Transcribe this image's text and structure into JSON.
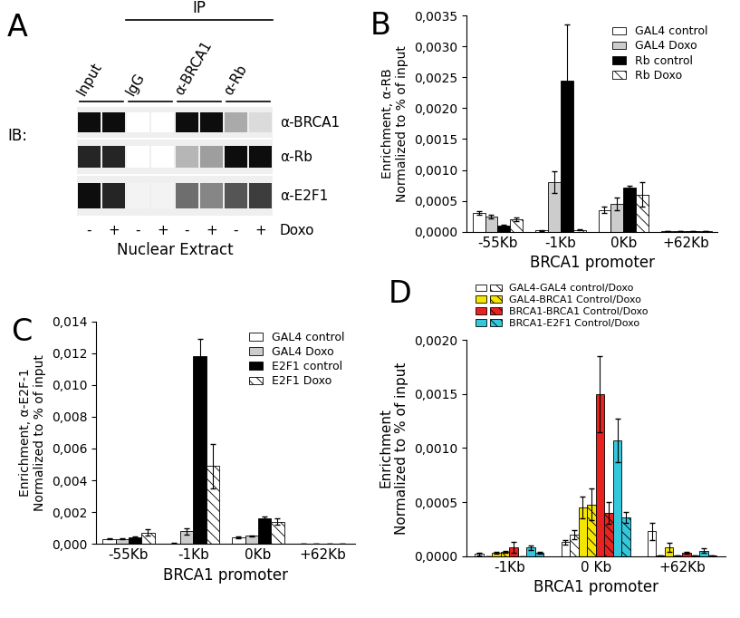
{
  "blot": {
    "title": "A",
    "ip_label": "IP",
    "groups": [
      "Input",
      "IgG",
      "α-BRCA1",
      "α-Rb"
    ],
    "lane_signs": [
      "-",
      "+",
      "-",
      "+",
      "-",
      "+",
      "-",
      "+"
    ],
    "treatment_label": "Doxo",
    "ib_label": "IB:",
    "sample_label": "Nuclear Extract",
    "rows": [
      {
        "name": "α-BRCA1",
        "intensity": [
          1.0,
          1.0,
          0.0,
          0.0,
          1.0,
          1.0,
          0.35,
          0.15
        ]
      },
      {
        "name": "α-Rb",
        "intensity": [
          0.9,
          0.9,
          0.0,
          0.0,
          0.3,
          0.4,
          1.0,
          1.0
        ]
      },
      {
        "name": "α-E2F1",
        "intensity": [
          1.0,
          0.9,
          0.05,
          0.05,
          0.6,
          0.5,
          0.7,
          0.8
        ]
      }
    ]
  },
  "chart_data": [
    {
      "type": "bar",
      "title": "B",
      "x_label": "BRCA1 promoter",
      "y_label": "Enrichment, α-RB\nNormalized to % of input",
      "categories": [
        "-55Kb",
        "-1Kb",
        "0Kb",
        "+62Kb"
      ],
      "ylim": [
        0,
        0.0035
      ],
      "yticks": [
        {
          "value": 0,
          "label": "0,0000"
        },
        {
          "value": 0.0005,
          "label": "0,0005"
        },
        {
          "value": 0.001,
          "label": "0,0010"
        },
        {
          "value": 0.0015,
          "label": "0,0015"
        },
        {
          "value": 0.002,
          "label": "0,0020"
        },
        {
          "value": 0.0025,
          "label": "0,0025"
        },
        {
          "value": 0.003,
          "label": "0,0030"
        },
        {
          "value": 0.0035,
          "label": "0,0035"
        }
      ],
      "legend": "upper right",
      "series": [
        {
          "name": "GAL4 control",
          "color": "#ffffff",
          "values": [
            0.0003,
            2e-05,
            0.00035,
            1e-05
          ],
          "errors": [
            3e-05,
            1e-05,
            5e-05,
            0.0
          ]
        },
        {
          "name": "GAL4 Doxo",
          "color": "#cccccc",
          "values": [
            0.00025,
            0.0008,
            0.00045,
            1e-05
          ],
          "errors": [
            3e-05,
            0.00018,
            0.0001,
            0.0
          ]
        },
        {
          "name": "Rb control",
          "color": "#000000",
          "values": [
            0.0001,
            0.00245,
            0.00072,
            1e-05
          ],
          "errors": [
            2e-05,
            0.0009,
            2e-05,
            0.0
          ]
        },
        {
          "name": "Rb Doxo",
          "color": "#ffffff",
          "line_style": "hatched",
          "values": [
            0.0002,
            3e-05,
            0.0006,
            1e-05
          ],
          "errors": [
            3e-05,
            1e-05,
            0.0002,
            0.0
          ]
        }
      ]
    },
    {
      "type": "bar",
      "title": "C",
      "x_label": "BRCA1 promoter",
      "y_label": "Enrichment, α-E2F-1\nNormalized to % of input",
      "categories": [
        "-55Kb",
        "-1Kb",
        "0Kb",
        "+62Kb"
      ],
      "ylim": [
        0,
        0.014
      ],
      "yticks": [
        {
          "value": 0,
          "label": "0,000"
        },
        {
          "value": 0.002,
          "label": "0,002"
        },
        {
          "value": 0.004,
          "label": "0,004"
        },
        {
          "value": 0.006,
          "label": "0,006"
        },
        {
          "value": 0.008,
          "label": "0,008"
        },
        {
          "value": 0.01,
          "label": "0,010"
        },
        {
          "value": 0.012,
          "label": "0,012"
        },
        {
          "value": 0.014,
          "label": "0,014"
        }
      ],
      "legend": "upper right",
      "series": [
        {
          "name": "GAL4 control",
          "color": "#ffffff",
          "values": [
            0.0003,
            3e-05,
            0.0004,
            2e-05
          ],
          "errors": [
            3e-05,
            1e-05,
            5e-05,
            0.0
          ]
        },
        {
          "name": "GAL4 Doxo",
          "color": "#cccccc",
          "values": [
            0.0003,
            0.0008,
            0.0005,
            2e-05
          ],
          "errors": [
            3e-05,
            0.0002,
            5e-05,
            0.0
          ]
        },
        {
          "name": "E2F1 control",
          "color": "#000000",
          "values": [
            0.0004,
            0.0118,
            0.0016,
            2e-05
          ],
          "errors": [
            5e-05,
            0.0011,
            0.0001,
            0.0
          ]
        },
        {
          "name": "E2F1 Doxo",
          "color": "#ffffff",
          "line_style": "hatched",
          "values": [
            0.0007,
            0.0049,
            0.0014,
            2e-05
          ],
          "errors": [
            0.0002,
            0.0014,
            0.0002,
            0.0
          ]
        }
      ]
    },
    {
      "type": "bar",
      "title": "D",
      "x_label": "BRCA1 promoter",
      "y_label": "Enrichment\nNormalized to % of input",
      "categories": [
        "-1Kb",
        "0 Kb",
        "+62Kb"
      ],
      "ylim": [
        0,
        0.002
      ],
      "yticks": [
        {
          "value": 0,
          "label": "0,0000"
        },
        {
          "value": 0.0005,
          "label": "0,0005"
        },
        {
          "value": 0.001,
          "label": "0,0010"
        },
        {
          "value": 0.0015,
          "label": "0,0015"
        },
        {
          "value": 0.002,
          "label": "0,0020"
        }
      ],
      "legend": "upper left",
      "series": [
        {
          "name": "GAL4-GAL4 control/Doxo",
          "color": "#ffffff",
          "values": [
            2e-05,
            0.00013,
            0.00023
          ],
          "errors": [
            1e-05,
            2e-05,
            8e-05
          ],
          "doxo_values": [
            0.0,
            0.0002,
            1e-05
          ],
          "doxo_errors": [
            0.0,
            4e-05,
            0.0
          ]
        },
        {
          "name": "GAL4-BRCA1 Control/Doxo",
          "color": "#f5e600",
          "values": [
            3e-05,
            0.00045,
            8e-05
          ],
          "errors": [
            1e-05,
            0.0001,
            4e-05
          ],
          "doxo_values": [
            4e-05,
            0.00048,
            1e-05
          ],
          "doxo_errors": [
            1e-05,
            0.00015,
            0.0
          ]
        },
        {
          "name": "BRCA1-BRCA1 Control/Doxo",
          "color": "#e8231f",
          "values": [
            8e-05,
            0.0015,
            3e-05
          ],
          "errors": [
            5e-05,
            0.00035,
            1e-05
          ],
          "doxo_values": [
            0.0,
            0.0004,
            1e-05
          ],
          "doxo_errors": [
            0.0,
            0.0001,
            0.0
          ]
        },
        {
          "name": "BRCA1-E2F1 Control/Doxo",
          "color": "#33c8dc",
          "values": [
            8e-05,
            0.00107,
            5e-05
          ],
          "errors": [
            2e-05,
            0.0002,
            2e-05
          ],
          "doxo_values": [
            3e-05,
            0.00036,
            1e-05
          ],
          "doxo_errors": [
            1e-05,
            5e-05,
            0.0
          ]
        }
      ]
    }
  ]
}
